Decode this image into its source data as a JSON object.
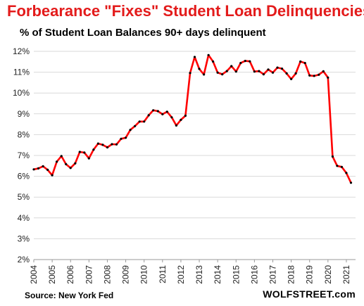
{
  "chart_data": {
    "type": "line",
    "title": "Forbearance \"Fixes\" Student Loan Delinquencies",
    "subtitle": "% of Student Loan Balances 90+ days delinquent",
    "ylim": [
      2,
      12
    ],
    "xlim": [
      2004,
      2021.5
    ],
    "y_ticks": [
      "2%",
      "3%",
      "4%",
      "5%",
      "6%",
      "7%",
      "8%",
      "9%",
      "10%",
      "11%",
      "12%"
    ],
    "x_ticks": [
      "2004",
      "2005",
      "2006",
      "2007",
      "2008",
      "2009",
      "2010",
      "2011",
      "2012",
      "2013",
      "2014",
      "2015",
      "2016",
      "2017",
      "2018",
      "2019",
      "2020",
      "2021"
    ],
    "grid": "horizontal",
    "line_color": "#ff0000",
    "marker_color": "#000000",
    "x": [
      2004.0,
      2004.25,
      2004.5,
      2004.75,
      2005.0,
      2005.25,
      2005.5,
      2005.75,
      2006.0,
      2006.25,
      2006.5,
      2006.75,
      2007.0,
      2007.25,
      2007.5,
      2007.75,
      2008.0,
      2008.25,
      2008.5,
      2008.75,
      2009.0,
      2009.25,
      2009.5,
      2009.75,
      2010.0,
      2010.25,
      2010.5,
      2010.75,
      2011.0,
      2011.25,
      2011.5,
      2011.75,
      2012.0,
      2012.25,
      2012.5,
      2012.75,
      2013.0,
      2013.25,
      2013.5,
      2013.75,
      2014.0,
      2014.25,
      2014.5,
      2014.75,
      2015.0,
      2015.25,
      2015.5,
      2015.75,
      2016.0,
      2016.25,
      2016.5,
      2016.75,
      2017.0,
      2017.25,
      2017.5,
      2017.75,
      2018.0,
      2018.25,
      2018.5,
      2018.75,
      2019.0,
      2019.25,
      2019.5,
      2019.75,
      2020.0,
      2020.25,
      2020.5,
      2020.75,
      2021.0,
      2021.25
    ],
    "values": [
      6.33,
      6.38,
      6.48,
      6.31,
      6.05,
      6.7,
      6.97,
      6.58,
      6.4,
      6.62,
      7.17,
      7.14,
      6.86,
      7.28,
      7.57,
      7.51,
      7.39,
      7.54,
      7.53,
      7.8,
      7.85,
      8.23,
      8.41,
      8.63,
      8.63,
      8.93,
      9.17,
      9.13,
      8.98,
      9.1,
      8.83,
      8.44,
      8.71,
      8.91,
      10.96,
      11.73,
      11.16,
      10.89,
      11.82,
      11.51,
      10.98,
      10.9,
      11.05,
      11.29,
      11.03,
      11.44,
      11.54,
      11.52,
      11.03,
      11.05,
      10.9,
      11.13,
      10.98,
      11.22,
      11.17,
      10.94,
      10.67,
      10.94,
      11.51,
      11.44,
      10.84,
      10.82,
      10.88,
      11.04,
      10.74,
      6.95,
      6.5,
      6.45,
      6.16,
      5.69
    ]
  },
  "footer": {
    "source": "Source: New York Fed",
    "brand": "WOLFSTREET.com"
  }
}
